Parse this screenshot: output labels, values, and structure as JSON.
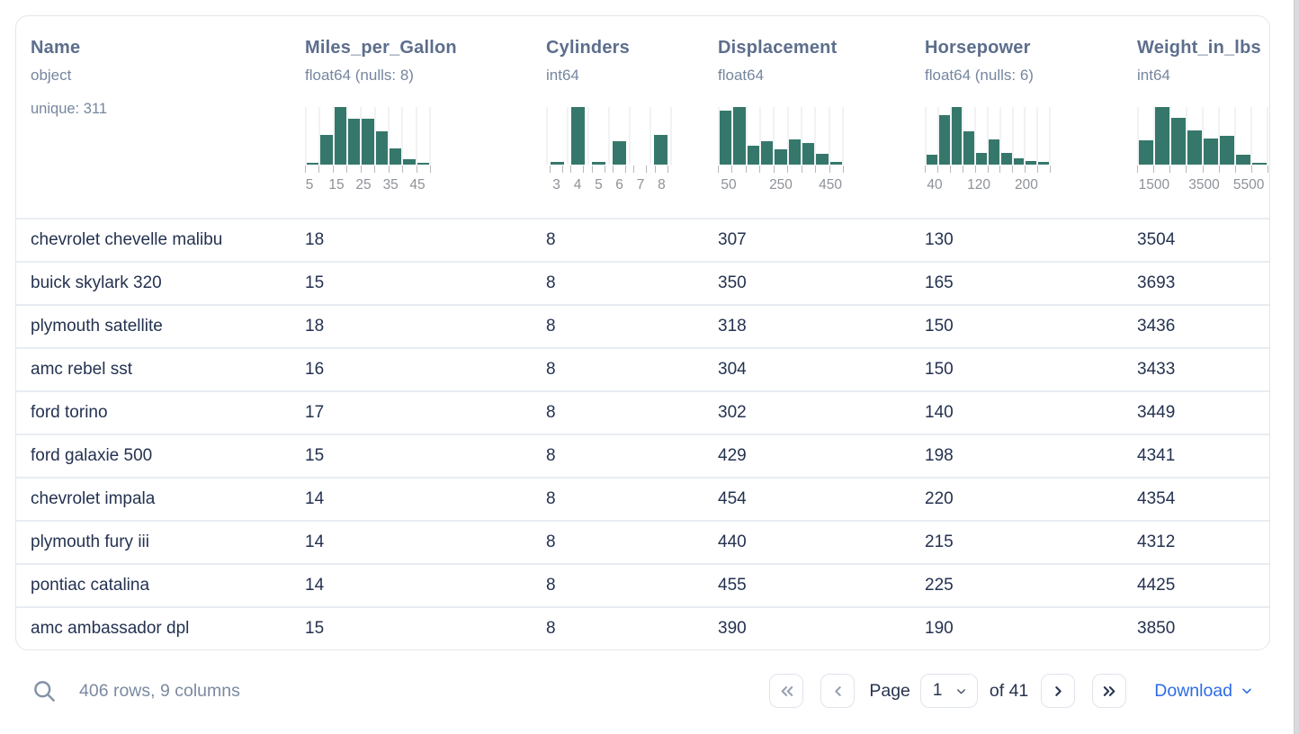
{
  "colors": {
    "histogram_bar": "#35786b",
    "download_link": "#2e6be6",
    "header_text": "#5d6e8c",
    "row_text": "#243250",
    "muted_text": "#76869e",
    "tick_label": "#8e9299"
  },
  "icons": {
    "search": "magnifier",
    "first_page": "double-chevron-left",
    "prev_page": "chevron-left",
    "next_page": "chevron-right",
    "last_page": "double-chevron-right",
    "page_select": "chevron-down",
    "download": "chevron-down"
  },
  "table": {
    "columns": [
      {
        "name": "Name",
        "dtype": "object",
        "meta": "unique: 311"
      },
      {
        "name": "Miles_per_Gallon",
        "dtype": "float64",
        "dtype_note": "(nulls: 8)",
        "histogram": {
          "type": "bar",
          "bins": [
            0.03,
            0.52,
            1.0,
            0.8,
            0.8,
            0.58,
            0.28,
            0.1,
            0.03
          ],
          "labels": [
            {
              "text": "5",
              "frac": 0.036
            },
            {
              "text": "15",
              "frac": 0.25
            },
            {
              "text": "25",
              "frac": 0.464
            },
            {
              "text": "35",
              "frac": 0.68
            },
            {
              "text": "45",
              "frac": 0.893
            }
          ]
        }
      },
      {
        "name": "Cylinders",
        "dtype": "int64",
        "histogram": {
          "type": "bar",
          "style": "narrow",
          "bins": [
            0.05,
            1.0,
            0.05,
            0.4,
            0,
            0.52
          ],
          "labels": [
            {
              "text": "3",
              "frac": 0.083
            },
            {
              "text": "4",
              "frac": 0.25
            },
            {
              "text": "5",
              "frac": 0.417
            },
            {
              "text": "6",
              "frac": 0.583
            },
            {
              "text": "7",
              "frac": 0.75
            },
            {
              "text": "8",
              "frac": 0.917
            }
          ]
        }
      },
      {
        "name": "Displacement",
        "dtype": "float64",
        "histogram": {
          "type": "bar",
          "bins": [
            0.93,
            1.0,
            0.33,
            0.4,
            0.27,
            0.44,
            0.37,
            0.18,
            0.05
          ],
          "labels": [
            {
              "text": "50",
              "frac": 0.086
            },
            {
              "text": "250",
              "frac": 0.5
            },
            {
              "text": "450",
              "frac": 0.893
            }
          ]
        }
      },
      {
        "name": "Horsepower",
        "dtype": "float64",
        "dtype_note": "(nulls: 6)",
        "histogram": {
          "type": "bar",
          "bins": [
            0.17,
            0.86,
            1.0,
            0.58,
            0.21,
            0.43,
            0.2,
            0.11,
            0.07,
            0.05
          ],
          "labels": [
            {
              "text": "40",
              "frac": 0.079
            },
            {
              "text": "120",
              "frac": 0.429
            },
            {
              "text": "200",
              "frac": 0.807
            }
          ]
        }
      },
      {
        "name": "Weight_in_lbs",
        "dtype": "int64",
        "histogram": {
          "type": "bar",
          "bins": [
            0.42,
            1.0,
            0.82,
            0.6,
            0.45,
            0.5,
            0.17,
            0.03
          ],
          "labels": [
            {
              "text": "1500",
              "frac": 0.129
            },
            {
              "text": "3500",
              "frac": 0.51
            },
            {
              "text": "5500",
              "frac": 0.85
            }
          ]
        }
      }
    ],
    "rows": [
      [
        "chevrolet chevelle malibu",
        "18",
        "8",
        "307",
        "130",
        "3504"
      ],
      [
        "buick skylark 320",
        "15",
        "8",
        "350",
        "165",
        "3693"
      ],
      [
        "plymouth satellite",
        "18",
        "8",
        "318",
        "150",
        "3436"
      ],
      [
        "amc rebel sst",
        "16",
        "8",
        "304",
        "150",
        "3433"
      ],
      [
        "ford torino",
        "17",
        "8",
        "302",
        "140",
        "3449"
      ],
      [
        "ford galaxie 500",
        "15",
        "8",
        "429",
        "198",
        "4341"
      ],
      [
        "chevrolet impala",
        "14",
        "8",
        "454",
        "220",
        "4354"
      ],
      [
        "plymouth fury iii",
        "14",
        "8",
        "440",
        "215",
        "4312"
      ],
      [
        "pontiac catalina",
        "14",
        "8",
        "455",
        "225",
        "4425"
      ],
      [
        "amc ambassador dpl",
        "15",
        "8",
        "390",
        "190",
        "3850"
      ]
    ]
  },
  "footer": {
    "summary": "406 rows, 9 columns",
    "page_label": "Page",
    "page_value": "1",
    "of_label": "of 41",
    "download_label": "Download"
  }
}
